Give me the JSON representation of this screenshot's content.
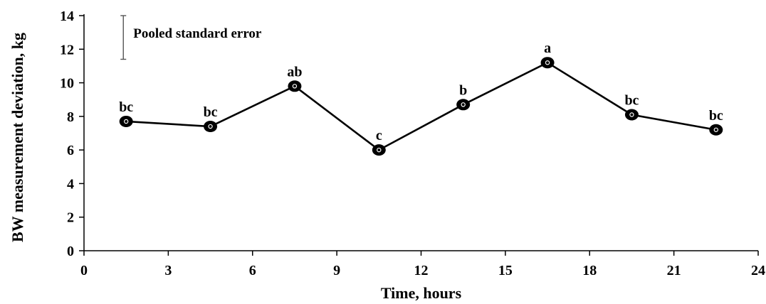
{
  "chart_data": {
    "type": "line",
    "title": "",
    "xlabel": "Time, hours",
    "ylabel": "BW measurement deviation, kg",
    "xlim": [
      0,
      24
    ],
    "ylim": [
      0,
      14
    ],
    "xticks": [
      0,
      3,
      6,
      9,
      12,
      15,
      18,
      21,
      24
    ],
    "yticks": [
      0,
      2,
      4,
      6,
      8,
      10,
      12,
      14
    ],
    "grid": false,
    "legend": {
      "label": "Pooled standard error",
      "error_bar_from": 11.4,
      "error_bar_to": 14,
      "error_bar_x": 1.4
    },
    "series": [
      {
        "name": "",
        "color": "#000000",
        "x": [
          1.5,
          4.5,
          7.5,
          10.5,
          13.5,
          16.5,
          19.5,
          22.5
        ],
        "y": [
          7.7,
          7.4,
          9.8,
          6.0,
          8.7,
          11.2,
          8.1,
          7.2
        ],
        "labels": [
          "bc",
          "bc",
          "ab",
          "c",
          "b",
          "a",
          "bc",
          "bc"
        ]
      }
    ]
  }
}
